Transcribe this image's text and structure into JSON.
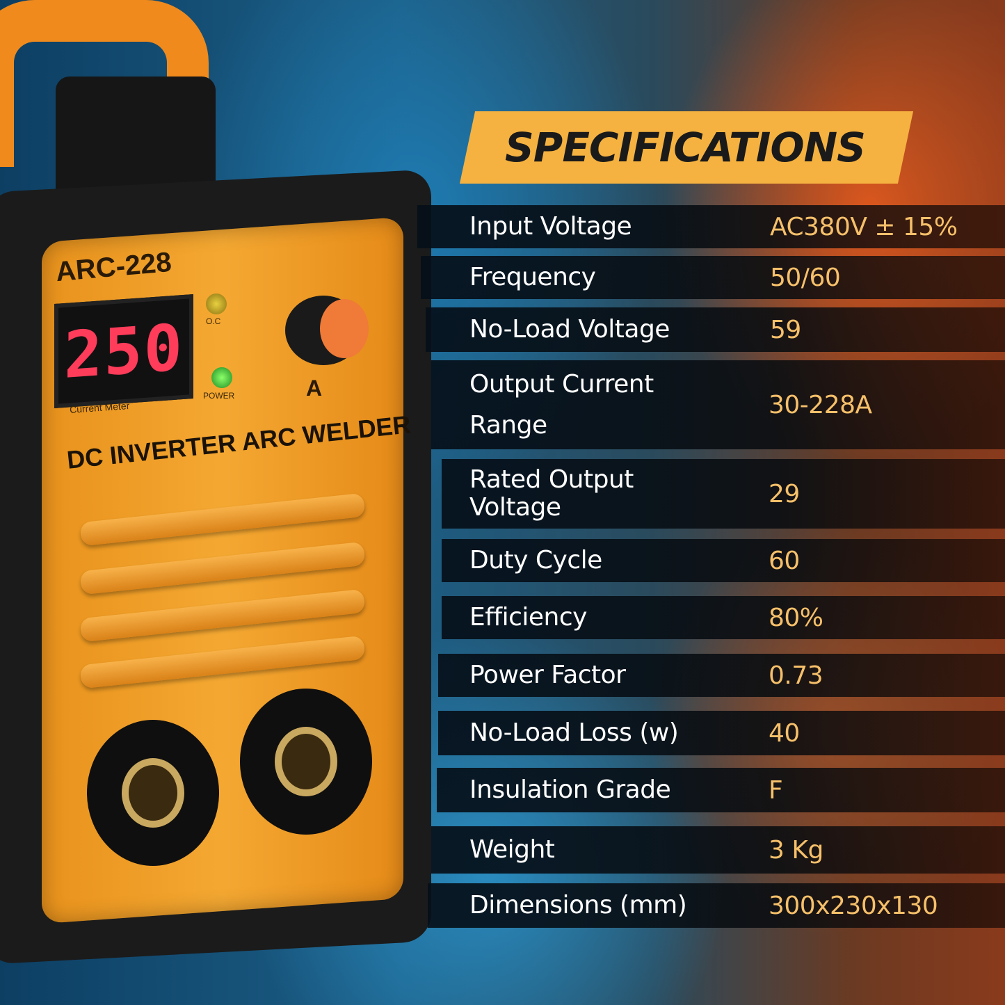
{
  "product": {
    "model": "ARC-228",
    "display_reading": "250",
    "meter_label": "Current Meter",
    "oc_label": "O.C",
    "power_label": "POWER",
    "knob_unit": "A",
    "name": "DC INVERTER ARC WELDER"
  },
  "colors": {
    "banner": "#f6b240",
    "value_text": "#f6c06a",
    "label_text": "#ffffff",
    "welder_body": "#f4a832"
  },
  "title": "SPECIFICATIONS",
  "specs": [
    {
      "label": "Input Voltage",
      "value": "AC380V ± 15%"
    },
    {
      "label": "Frequency",
      "value": "50/60"
    },
    {
      "label": "No-Load Voltage",
      "value": "59"
    },
    {
      "label": "Output Current Range",
      "value": "30-228A"
    },
    {
      "label": "Rated Output Voltage",
      "value": "29"
    },
    {
      "label": "Duty Cycle",
      "value": "60"
    },
    {
      "label": "Efficiency",
      "value": "80%"
    },
    {
      "label": "Power Factor",
      "value": "0.73"
    },
    {
      "label": "No-Load Loss (w)",
      "value": "40"
    },
    {
      "label": "Insulation Grade",
      "value": "F"
    },
    {
      "label": "Weight",
      "value": "3 Kg"
    },
    {
      "label": "Dimensions (mm)",
      "value": "300x230x130"
    }
  ]
}
